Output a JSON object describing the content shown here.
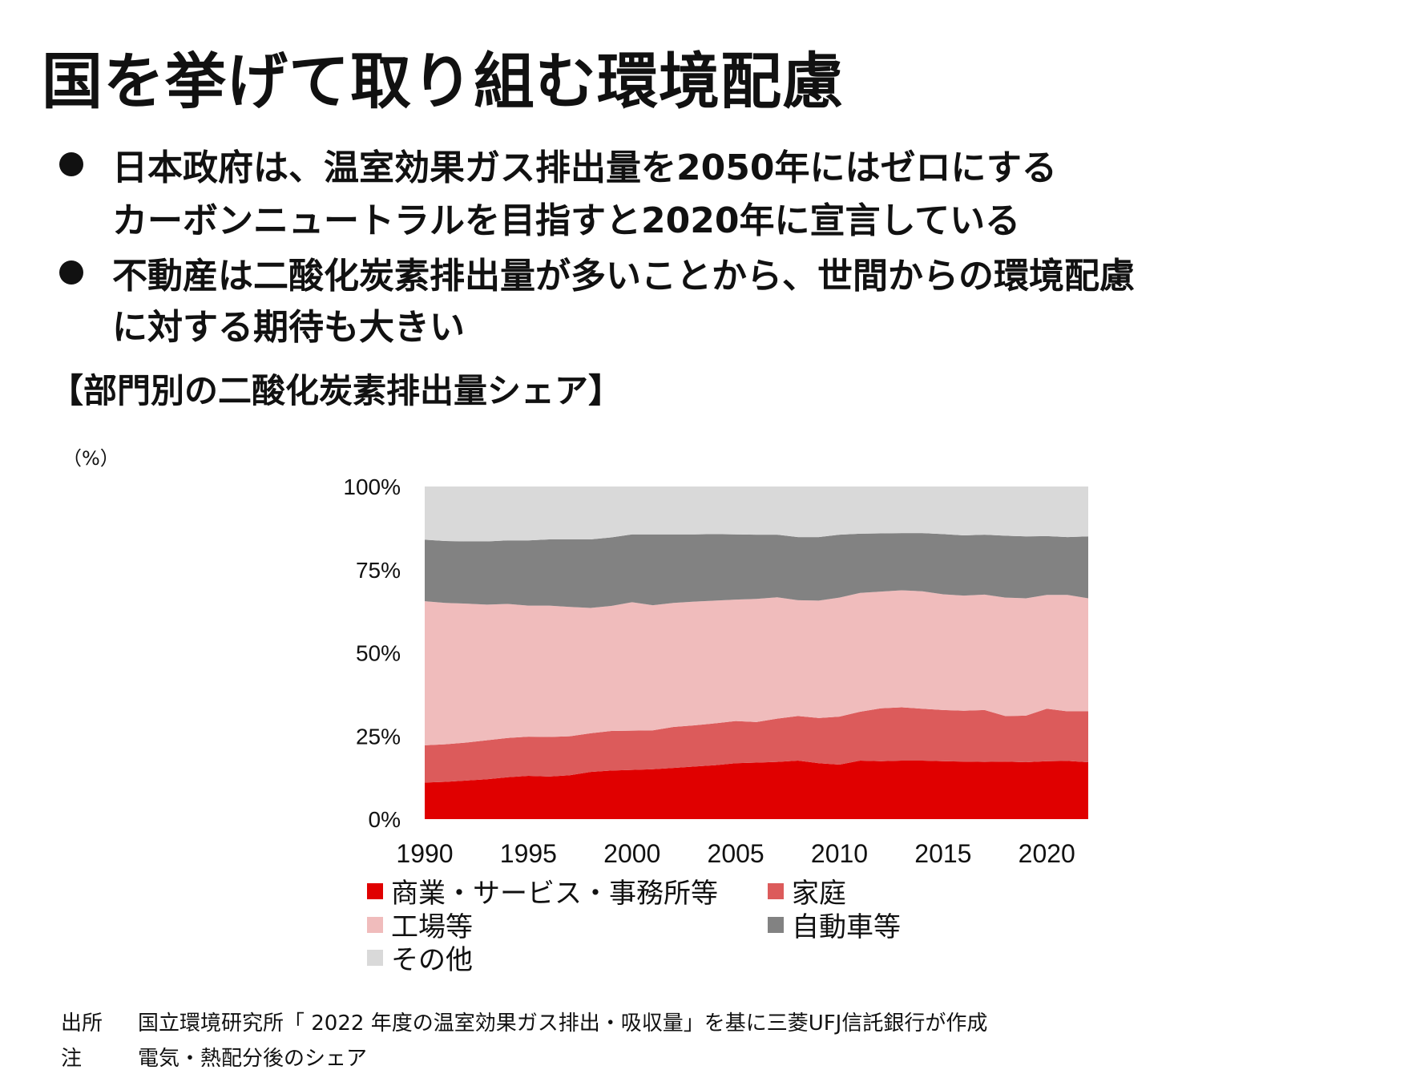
{
  "title": "国を挙げて取り組む環境配慮",
  "bullets": [
    {
      "lines": [
        "日本政府は、温室効果ガス排出量を2050年にはゼロにする",
        "カーボンニュートラルを目指すと2020年に宣言している"
      ]
    },
    {
      "lines": [
        "不動産は二酸化炭素排出量が多いことから、世間からの環境配慮",
        "に対する期待も大きい"
      ]
    }
  ],
  "chart_heading": "【部門別の二酸化炭素排出量シェア】",
  "unit_label": "（%）",
  "chart_data": {
    "type": "area",
    "stacked": true,
    "x": [
      1990,
      1991,
      1992,
      1993,
      1994,
      1995,
      1996,
      1997,
      1998,
      1999,
      2000,
      2001,
      2002,
      2003,
      2004,
      2005,
      2006,
      2007,
      2008,
      2009,
      2010,
      2011,
      2012,
      2013,
      2014,
      2015,
      2016,
      2017,
      2018,
      2019,
      2020,
      2021,
      2022
    ],
    "ylim": [
      0,
      100
    ],
    "yticks": [
      0,
      25,
      50,
      75,
      100
    ],
    "ytick_labels": [
      "0%",
      "25%",
      "50%",
      "75%",
      "100%"
    ],
    "xticks": [
      1990,
      1995,
      2000,
      2005,
      2010,
      2015,
      2020
    ],
    "xtick_labels": [
      "1990",
      "1995",
      "2000",
      "2005",
      "2010",
      "2015",
      "2020"
    ],
    "series": [
      {
        "name": "商業・サービス・事務所等",
        "color": "#e00000",
        "values": [
          11.0,
          11.2,
          11.6,
          12.0,
          12.6,
          13.0,
          12.8,
          13.2,
          14.2,
          14.6,
          14.8,
          15.0,
          15.4,
          15.8,
          16.2,
          16.8,
          17.0,
          17.2,
          17.6,
          16.8,
          16.4,
          17.6,
          17.4,
          17.6,
          17.6,
          17.4,
          17.3,
          17.2,
          17.3,
          17.1,
          17.4,
          17.5,
          17.1
        ]
      },
      {
        "name": "家庭",
        "color": "#dc5b5b",
        "values": [
          11.2,
          11.3,
          11.4,
          11.7,
          11.8,
          11.8,
          11.9,
          11.7,
          11.6,
          11.9,
          11.8,
          11.7,
          12.3,
          12.4,
          12.6,
          12.7,
          12.2,
          13.0,
          13.4,
          13.6,
          14.4,
          14.7,
          15.9,
          16.0,
          15.6,
          15.4,
          15.3,
          15.6,
          13.7,
          14.0,
          15.8,
          14.9,
          15.3
        ]
      },
      {
        "name": "工場等",
        "color": "#f0bcbc",
        "values": [
          43.3,
          42.5,
          41.8,
          40.8,
          40.3,
          39.4,
          39.5,
          38.9,
          37.7,
          37.6,
          38.6,
          37.6,
          37.3,
          37.2,
          36.9,
          36.5,
          37.0,
          36.5,
          34.8,
          35.3,
          35.8,
          35.7,
          35.1,
          35.2,
          35.3,
          34.8,
          34.6,
          34.7,
          35.6,
          35.3,
          34.2,
          35.0,
          34.0
        ]
      },
      {
        "name": "自動車等",
        "color": "#828282",
        "values": [
          18.5,
          18.6,
          18.7,
          19.0,
          19.1,
          19.6,
          19.9,
          20.3,
          20.6,
          20.6,
          20.4,
          21.3,
          20.6,
          20.2,
          20.0,
          19.6,
          19.3,
          18.8,
          19.0,
          19.1,
          18.9,
          17.8,
          17.5,
          17.2,
          17.5,
          18.1,
          18.1,
          18.0,
          18.6,
          18.6,
          17.7,
          17.4,
          18.6
        ]
      },
      {
        "name": "その他",
        "color": "#d9d9d9",
        "values": [
          16.0,
          16.4,
          16.5,
          16.5,
          16.2,
          16.2,
          15.9,
          15.9,
          15.9,
          15.3,
          14.4,
          14.4,
          14.4,
          14.4,
          14.3,
          14.4,
          14.5,
          14.5,
          15.2,
          15.2,
          14.5,
          14.2,
          14.1,
          14.0,
          14.0,
          14.3,
          14.7,
          14.5,
          14.8,
          15.0,
          14.9,
          15.2,
          15.0
        ]
      }
    ]
  },
  "notes": [
    {
      "key": "出所",
      "text": "国立環境研究所「 2022 年度の温室効果ガス排出・吸収量」を基に三菱UFJ信託銀行が作成"
    },
    {
      "key": "注",
      "text": "電気・熱配分後のシェア"
    }
  ]
}
